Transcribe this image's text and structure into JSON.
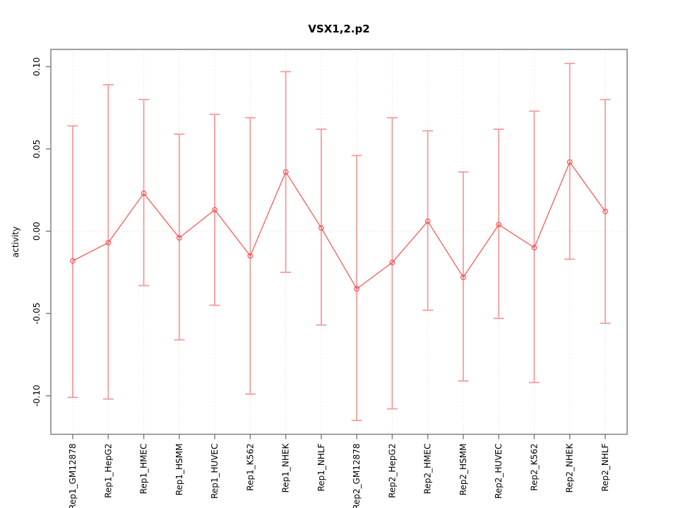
{
  "chart_data": {
    "type": "line",
    "title": "VSX1,2.p2",
    "xlabel": "",
    "ylabel": "activity",
    "point_style": "open-circle",
    "error_bars": true,
    "legend": "none",
    "grid": {
      "vertical": "dotted line at every category",
      "horizontal": "dotted line at y=0 only"
    },
    "ylim": [
      -0.124,
      0.111
    ],
    "yticks": [
      0.1,
      0.05,
      0.0,
      -0.05,
      -0.1
    ],
    "ytick_labels": [
      "0.10",
      "0.05",
      "0.00",
      "-0.05",
      "-0.10"
    ],
    "categories": [
      "Rep1_GM12878",
      "Rep1_HepG2",
      "Rep1_HMEC",
      "Rep1_HSMM",
      "Rep1_HUVEC",
      "Rep1_K562",
      "Rep1_NHEK",
      "Rep1_NHLF",
      "Rep2_GM12878",
      "Rep2_HepG2",
      "Rep2_HMEC",
      "Rep2_HSMM",
      "Rep2_HUVEC",
      "Rep2_K562",
      "Rep2_NHEK",
      "Rep2_NHLF"
    ],
    "series": [
      {
        "name": "activity",
        "values": [
          -0.018,
          -0.007,
          0.023,
          -0.004,
          0.013,
          -0.015,
          0.036,
          0.002,
          -0.035,
          -0.019,
          0.006,
          -0.028,
          0.004,
          -0.01,
          0.042,
          0.012
        ],
        "upper": [
          0.064,
          0.089,
          0.08,
          0.059,
          0.071,
          0.069,
          0.097,
          0.062,
          0.046,
          0.069,
          0.061,
          0.036,
          0.062,
          0.073,
          0.102,
          0.08
        ],
        "lower": [
          -0.101,
          -0.102,
          -0.033,
          -0.066,
          -0.045,
          -0.099,
          -0.025,
          -0.057,
          -0.115,
          -0.108,
          -0.048,
          -0.091,
          -0.053,
          -0.092,
          -0.017,
          -0.056
        ]
      }
    ],
    "colors": {
      "line": "#f85050",
      "error_bar": "#f49c9c",
      "grid": "#d9d9d9",
      "frame": "#808080",
      "text": "#000000",
      "background": "#ffffff"
    }
  }
}
